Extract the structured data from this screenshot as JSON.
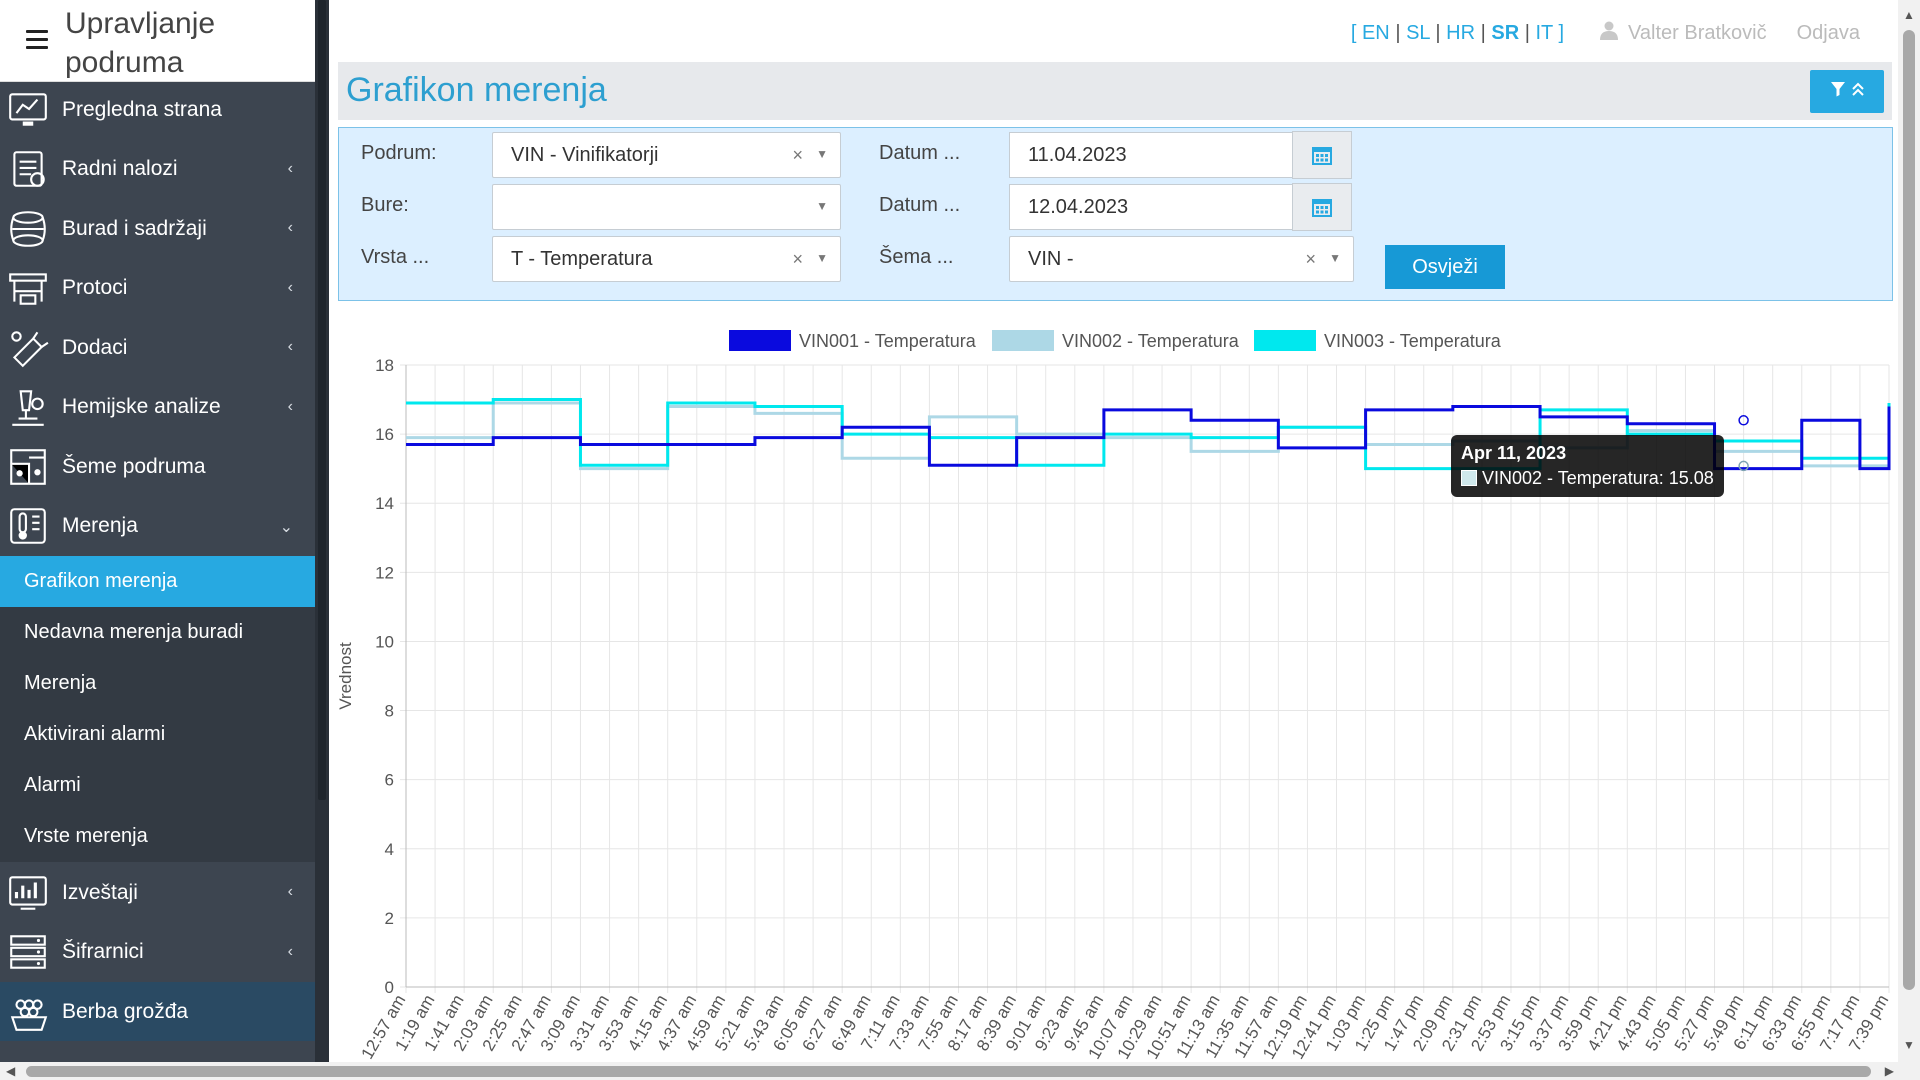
{
  "app": {
    "title": "Upravljanje podruma"
  },
  "sidebar": {
    "items": [
      {
        "label": "Pregledna strana",
        "icon": "dashboard-icon",
        "has_children": false
      },
      {
        "label": "Radni nalozi",
        "icon": "work-orders-icon",
        "has_children": true
      },
      {
        "label": "Burad i sadržaji",
        "icon": "barrel-icon",
        "has_children": true
      },
      {
        "label": "Protoci",
        "icon": "flow-icon",
        "has_children": true
      },
      {
        "label": "Dodaci",
        "icon": "additives-icon",
        "has_children": true
      },
      {
        "label": "Hemijske analize",
        "icon": "microscope-icon",
        "has_children": true
      },
      {
        "label": "Šeme podruma",
        "icon": "scheme-icon",
        "has_children": false
      },
      {
        "label": "Merenja",
        "icon": "thermometer-icon",
        "has_children": true,
        "expanded": true
      }
    ],
    "sub_items": [
      {
        "label": "Grafikon merenja",
        "active": true
      },
      {
        "label": "Nedavna merenja buradi",
        "active": false
      },
      {
        "label": "Merenja",
        "active": false
      },
      {
        "label": "Aktivirani alarmi",
        "active": false
      },
      {
        "label": "Alarmi",
        "active": false
      },
      {
        "label": "Vrste merenja",
        "active": false
      }
    ],
    "items_after": [
      {
        "label": "Izveštaji",
        "icon": "reports-icon",
        "has_children": true
      },
      {
        "label": "Šifrarnici",
        "icon": "database-icon",
        "has_children": true
      },
      {
        "label": "Berba grožđa",
        "icon": "grapes-icon",
        "has_children": false
      }
    ]
  },
  "topbar": {
    "languages": [
      {
        "code": "EN",
        "active": false
      },
      {
        "code": "SL",
        "active": false
      },
      {
        "code": "HR",
        "active": false
      },
      {
        "code": "SR",
        "active": true
      },
      {
        "code": "IT",
        "active": false
      }
    ],
    "bracket_open": "[",
    "bracket_close": "]",
    "separator": "|",
    "user": "Valter Bratkovič",
    "logout": "Odjava"
  },
  "page": {
    "title": "Grafikon merenja"
  },
  "filter": {
    "cellar_label": "Podrum:",
    "cellar_value": "VIN - Vinifikatorji",
    "barrels_label": "Bure:",
    "barrels_value": "",
    "type_label": "Vrsta ...",
    "type_value": "T - Temperatura",
    "date_from_label": "Datum ...",
    "date_from_value": "11.04.2023",
    "date_to_label": "Datum ...",
    "date_to_value": "12.04.2023",
    "scheme_label": "Šema ...",
    "scheme_value": "VIN -",
    "refresh_label": "Osvježi",
    "clear_symbol": "×",
    "dropdown_symbol": "▼"
  },
  "chart_data": {
    "type": "line",
    "step": true,
    "ylabel": "Vrednost",
    "ylim": [
      0,
      18
    ],
    "yticks": [
      0,
      2,
      4,
      6,
      8,
      10,
      12,
      14,
      16,
      18
    ],
    "grid": true,
    "legend_position": "top",
    "x_labels": [
      "12:57 am",
      "1:19 am",
      "1:41 am",
      "2:03 am",
      "2:25 am",
      "2:47 am",
      "3:09 am",
      "3:31 am",
      "3:53 am",
      "4:15 am",
      "4:37 am",
      "4:59 am",
      "5:21 am",
      "5:43 am",
      "6:05 am",
      "6:27 am",
      "6:49 am",
      "7:11 am",
      "7:33 am",
      "7:55 am",
      "8:17 am",
      "8:39 am",
      "9:01 am",
      "9:23 am",
      "9:45 am",
      "10:07 am",
      "10:29 am",
      "10:51 am",
      "11:13 am",
      "11:35 am",
      "11:57 am",
      "12:19 pm",
      "12:41 pm",
      "1:03 pm",
      "1:25 pm",
      "1:47 pm",
      "2:09 pm",
      "2:31 pm",
      "2:53 pm",
      "3:15 pm",
      "3:37 pm",
      "3:59 pm",
      "4:21 pm",
      "4:43 pm",
      "5:05 pm",
      "5:27 pm",
      "5:49 pm",
      "6:11 pm",
      "6:33 pm",
      "6:55 pm",
      "7:17 pm",
      "7:39 pm"
    ],
    "series": [
      {
        "name": "VIN001 - Temperatura",
        "color": "#0a0ade",
        "values": [
          15.7,
          15.7,
          15.7,
          15.9,
          15.9,
          15.9,
          15.7,
          15.7,
          15.7,
          15.7,
          15.7,
          15.7,
          15.9,
          15.9,
          15.9,
          16.2,
          16.2,
          16.2,
          15.1,
          15.1,
          15.1,
          15.9,
          15.9,
          15.9,
          16.7,
          16.7,
          16.7,
          16.4,
          16.4,
          16.4,
          15.6,
          15.6,
          15.6,
          16.7,
          16.7,
          16.7,
          16.8,
          16.8,
          16.8,
          16.5,
          16.5,
          16.5,
          16.3,
          16.3,
          16.3,
          15.0,
          15.0,
          15.0,
          16.4,
          16.4,
          15.0,
          16.8
        ]
      },
      {
        "name": "VIN002 - Temperatura",
        "color": "#add8e6",
        "values": [
          15.9,
          15.9,
          15.9,
          16.9,
          16.9,
          16.9,
          15.0,
          15.0,
          15.0,
          16.8,
          16.8,
          16.8,
          16.6,
          16.6,
          16.6,
          15.3,
          15.3,
          15.3,
          16.5,
          16.5,
          16.5,
          16.0,
          16.0,
          16.0,
          15.9,
          15.9,
          15.9,
          15.5,
          15.5,
          15.5,
          16.2,
          16.2,
          16.2,
          15.7,
          15.7,
          15.7,
          15.8,
          15.8,
          15.8,
          15.6,
          15.6,
          15.6,
          16.1,
          16.1,
          16.1,
          15.5,
          15.5,
          15.5,
          15.08,
          15.08,
          15.08,
          16.8
        ]
      },
      {
        "name": "VIN003 - Temperatura",
        "color": "#00e8ee",
        "values": [
          16.9,
          16.9,
          16.9,
          17.0,
          17.0,
          17.0,
          15.1,
          15.1,
          15.1,
          16.9,
          16.9,
          16.9,
          16.8,
          16.8,
          16.8,
          16.0,
          16.0,
          16.0,
          15.9,
          15.9,
          15.9,
          15.1,
          15.1,
          15.1,
          16.0,
          16.0,
          16.0,
          15.9,
          15.9,
          15.9,
          16.2,
          16.2,
          16.2,
          15.0,
          15.0,
          15.0,
          15.0,
          15.0,
          15.0,
          16.7,
          16.7,
          16.7,
          16.0,
          16.0,
          16.0,
          15.8,
          15.8,
          15.8,
          15.3,
          15.3,
          15.3,
          16.9
        ]
      }
    ],
    "tooltip": {
      "title": "Apr 11, 2023",
      "text": "VIN002 - Temperatura: 15.08"
    }
  }
}
